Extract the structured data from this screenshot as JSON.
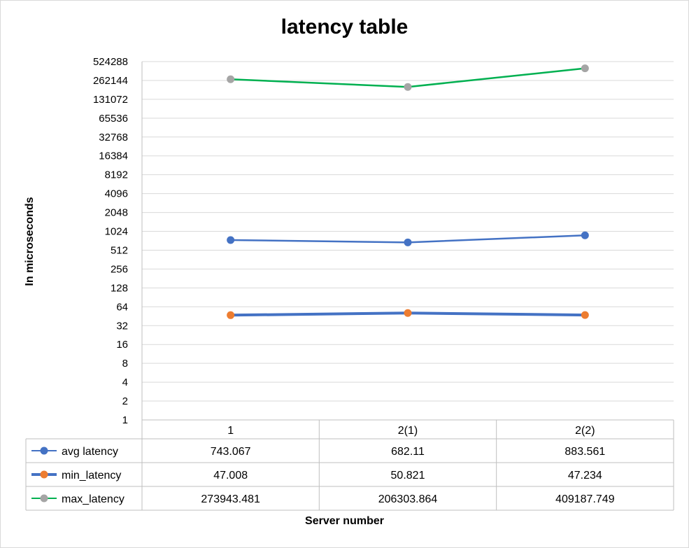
{
  "chart_data": {
    "type": "line",
    "title": "latency table",
    "xlabel": "Server number",
    "ylabel": "In microseconds",
    "y_scale": "log2",
    "ylim": [
      1,
      524288
    ],
    "y_ticks": [
      "1",
      "2",
      "4",
      "8",
      "16",
      "32",
      "64",
      "128",
      "256",
      "512",
      "1024",
      "2048",
      "4096",
      "8192",
      "16384",
      "32768",
      "65536",
      "131072",
      "262144",
      "524288"
    ],
    "categories": [
      "1",
      "2(1)",
      "2(2)"
    ],
    "grid": true,
    "legend": "data-table",
    "series": [
      {
        "name": "avg latency",
        "values": [
          743.067,
          682.11,
          883.561
        ],
        "value_labels": [
          "743.067",
          "682.11",
          "883.561"
        ],
        "line_color": "#4472c4",
        "marker_color": "#4472c4"
      },
      {
        "name": "min_latency",
        "values": [
          47.008,
          50.821,
          47.234
        ],
        "value_labels": [
          "47.008",
          "50.821",
          "47.234"
        ],
        "line_color": "#4472c4",
        "marker_color": "#ed7d31"
      },
      {
        "name": "max_latency",
        "values": [
          273943.481,
          206303.864,
          409187.749
        ],
        "value_labels": [
          "273943.481",
          "206303.864",
          "409187.749"
        ],
        "line_color": "#00b050",
        "marker_color": "#a5a5a5"
      }
    ]
  }
}
